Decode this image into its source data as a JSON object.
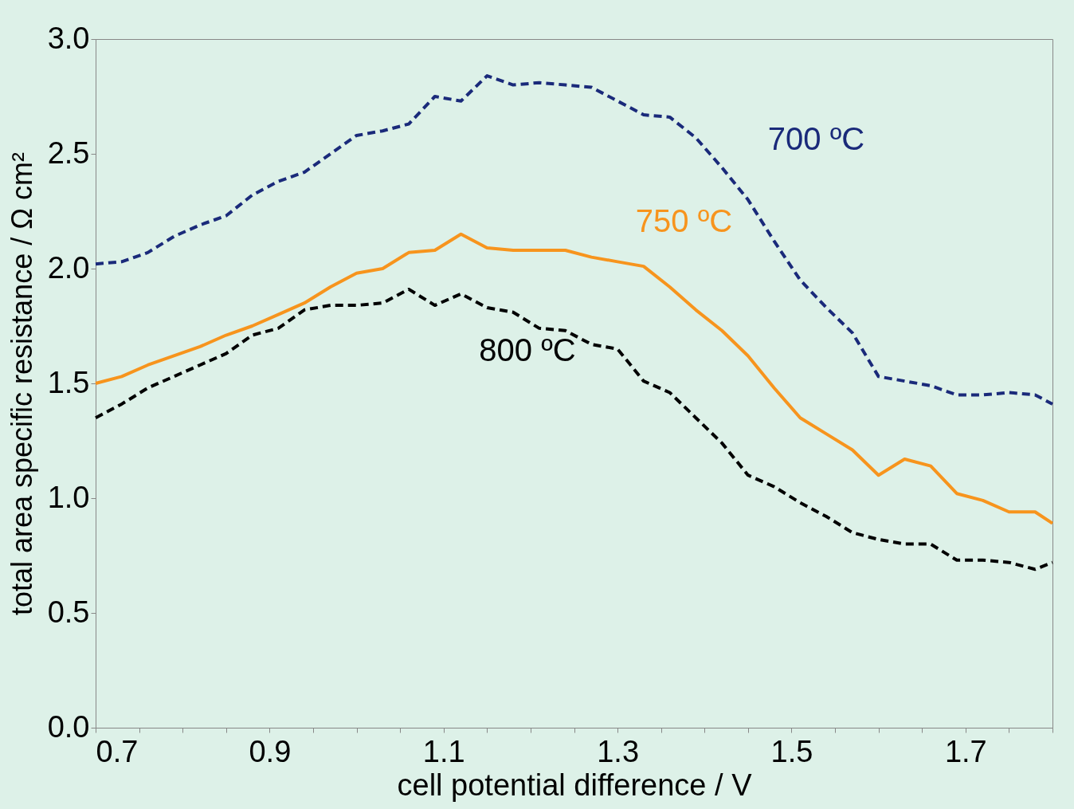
{
  "chart_data": {
    "type": "line",
    "xlabel": "cell potential difference / V",
    "ylabel": "total area specific resistance / Ω cm²",
    "x": [
      0.7,
      0.73,
      0.76,
      0.79,
      0.82,
      0.85,
      0.88,
      0.91,
      0.94,
      0.97,
      1.0,
      1.03,
      1.06,
      1.09,
      1.12,
      1.15,
      1.18,
      1.21,
      1.24,
      1.27,
      1.3,
      1.33,
      1.36,
      1.39,
      1.42,
      1.45,
      1.48,
      1.51,
      1.54,
      1.57,
      1.6,
      1.63,
      1.66,
      1.69,
      1.72,
      1.75,
      1.78,
      1.8
    ],
    "series": [
      {
        "name": "700 ºC",
        "color": "#1a2a7a",
        "line_style": "dashed",
        "values": [
          2.02,
          2.03,
          2.07,
          2.14,
          2.19,
          2.23,
          2.32,
          2.38,
          2.42,
          2.5,
          2.58,
          2.6,
          2.63,
          2.75,
          2.73,
          2.84,
          2.8,
          2.81,
          2.8,
          2.79,
          2.73,
          2.67,
          2.66,
          2.57,
          2.44,
          2.3,
          2.12,
          1.95,
          1.83,
          1.72,
          1.53,
          1.51,
          1.49,
          1.45,
          1.45,
          1.46,
          1.45,
          1.41
        ]
      },
      {
        "name": "750 ºC",
        "color": "#f7941d",
        "line_style": "solid",
        "values": [
          1.5,
          1.53,
          1.58,
          1.62,
          1.66,
          1.71,
          1.75,
          1.8,
          1.85,
          1.92,
          1.98,
          2.0,
          2.07,
          2.08,
          2.15,
          2.09,
          2.08,
          2.08,
          2.08,
          2.05,
          2.03,
          2.01,
          1.92,
          1.82,
          1.73,
          1.62,
          1.48,
          1.35,
          1.28,
          1.21,
          1.1,
          1.17,
          1.14,
          1.02,
          0.99,
          0.94,
          0.94,
          0.89
        ]
      },
      {
        "name": "800 ºC",
        "color": "#000000",
        "line_style": "dashed",
        "values": [
          1.35,
          1.41,
          1.48,
          1.53,
          1.58,
          1.63,
          1.71,
          1.74,
          1.82,
          1.84,
          1.84,
          1.85,
          1.91,
          1.84,
          1.89,
          1.83,
          1.81,
          1.74,
          1.73,
          1.67,
          1.65,
          1.51,
          1.46,
          1.35,
          1.24,
          1.1,
          1.05,
          0.98,
          0.92,
          0.85,
          0.82,
          0.8,
          0.8,
          0.73,
          0.73,
          0.72,
          0.69,
          0.72
        ]
      }
    ],
    "xlim": [
      0.7,
      1.8
    ],
    "xticks": [
      0.7,
      {
        "value": 0.75,
        "label": null
      },
      {
        "value": 0.8,
        "label": null
      },
      {
        "value": 0.85,
        "label": null
      },
      0.9,
      {
        "value": 0.95,
        "label": null
      },
      {
        "value": 1.0,
        "label": null
      },
      {
        "value": 1.05,
        "label": null
      },
      1.1,
      {
        "value": 1.15,
        "label": null
      },
      {
        "value": 1.2,
        "label": null
      },
      {
        "value": 1.25,
        "label": null
      },
      1.3,
      {
        "value": 1.35,
        "label": null
      },
      {
        "value": 1.4,
        "label": null
      },
      {
        "value": 1.45,
        "label": null
      },
      1.5,
      {
        "value": 1.55,
        "label": null
      },
      {
        "value": 1.6,
        "label": null
      },
      {
        "value": 1.65,
        "label": null
      },
      1.7,
      {
        "value": 1.75,
        "label": null
      },
      {
        "value": 1.8,
        "label": null
      }
    ],
    "ylim": [
      0,
      3.0
    ],
    "yticks": [
      {
        "value": 0,
        "label": "0.0"
      },
      0.5,
      {
        "value": 1,
        "label": "1.0"
      },
      1.5,
      {
        "value": 2,
        "label": "2.0"
      },
      2.5,
      {
        "value": 3,
        "label": "3.0"
      }
    ],
    "grid": false,
    "marker": "none"
  }
}
